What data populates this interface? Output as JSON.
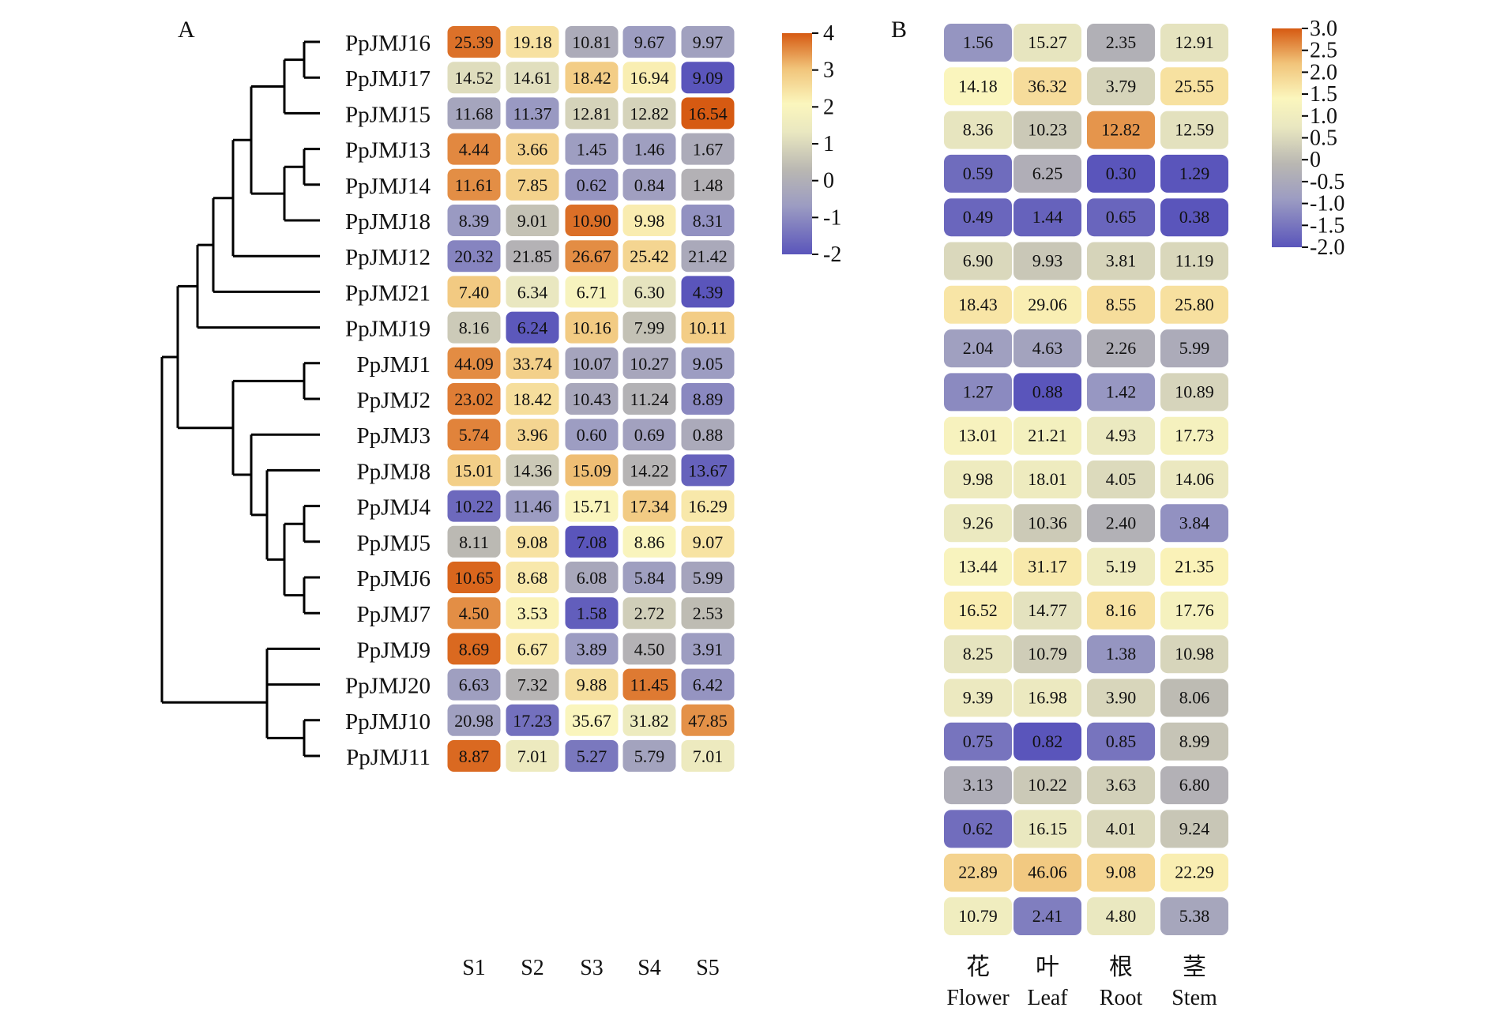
{
  "chart_data": [
    {
      "type": "heatmap",
      "panel": "A",
      "rows": [
        "PpJMJ16",
        "PpJMJ17",
        "PpJMJ15",
        "PpJMJ13",
        "PpJMJ14",
        "PpJMJ18",
        "PpJMJ12",
        "PpJMJ21",
        "PpJMJ19",
        "PpJMJ1",
        "PpJMJ2",
        "PpJMJ3",
        "PpJMJ8",
        "PpJMJ4",
        "PpJMJ5",
        "PpJMJ6",
        "PpJMJ7",
        "PpJMJ9",
        "PpJMJ20",
        "PpJMJ10",
        "PpJMJ11"
      ],
      "columns": [
        "S1",
        "S2",
        "S3",
        "S4",
        "S5"
      ],
      "values": [
        [
          "25.39",
          "19.18",
          "10.81",
          "9.67",
          "9.97"
        ],
        [
          "14.52",
          "14.61",
          "18.42",
          "16.94",
          "9.09"
        ],
        [
          "11.68",
          "11.37",
          "12.81",
          "12.82",
          "16.54"
        ],
        [
          "4.44",
          "3.66",
          "1.45",
          "1.46",
          "1.67"
        ],
        [
          "11.61",
          "7.85",
          "0.62",
          "0.84",
          "1.48"
        ],
        [
          "8.39",
          "9.01",
          "10.90",
          "9.98",
          "8.31"
        ],
        [
          "20.32",
          "21.85",
          "26.67",
          "25.42",
          "21.42"
        ],
        [
          "7.40",
          "6.34",
          "6.71",
          "6.30",
          "4.39"
        ],
        [
          "8.16",
          "6.24",
          "10.16",
          "7.99",
          "10.11"
        ],
        [
          "44.09",
          "33.74",
          "10.07",
          "10.27",
          "9.05"
        ],
        [
          "23.02",
          "18.42",
          "10.43",
          "11.24",
          "8.89"
        ],
        [
          "5.74",
          "3.96",
          "0.60",
          "0.69",
          "0.88"
        ],
        [
          "15.01",
          "14.36",
          "15.09",
          "14.22",
          "13.67"
        ],
        [
          "10.22",
          "11.46",
          "15.71",
          "17.34",
          "16.29"
        ],
        [
          "8.11",
          "9.08",
          "7.08",
          "8.86",
          "9.07"
        ],
        [
          "10.65",
          "8.68",
          "6.08",
          "5.84",
          "5.99"
        ],
        [
          "4.50",
          "3.53",
          "1.58",
          "2.72",
          "2.53"
        ],
        [
          "8.69",
          "6.67",
          "3.89",
          "4.50",
          "3.91"
        ],
        [
          "6.63",
          "7.32",
          "9.88",
          "11.45",
          "6.42"
        ],
        [
          "20.98",
          "17.23",
          "35.67",
          "31.82",
          "47.85"
        ],
        [
          "8.87",
          "7.01",
          "5.27",
          "5.79",
          "7.01"
        ]
      ],
      "colorbar": {
        "min": -2,
        "max": 4,
        "ticks": [
          "4",
          "3",
          "2",
          "1",
          "0",
          "-1",
          "-2"
        ]
      },
      "dendrogram": {
        "tree": [
          [
            [
              [
                [
                  [
                    "PpJMJ16",
                    "PpJMJ17"
                  ],
                  "PpJMJ15"
                ],
                [
                  [
                    "PpJMJ13",
                    "PpJMJ14"
                  ],
                  "PpJMJ18"
                ]
              ],
              "PpJMJ12"
            ],
            "PpJMJ21"
          ],
          "PpJMJ19"
        ],
        "tree2": [
          [
            [
              "PpJMJ1",
              "PpJMJ2"
            ],
            [
              "PpJMJ3",
              [
                "PpJMJ8",
                [
                  [
                    "PpJMJ4",
                    "PpJMJ5"
                  ],
                  [
                    "PpJMJ6",
                    "PpJMJ7"
                  ]
                ]
              ]
            ]
          ],
          [
            [
              "PpJMJ9",
              "PpJMJ20"
            ],
            [
              "PpJMJ10",
              "PpJMJ11"
            ]
          ]
        ]
      }
    },
    {
      "type": "heatmap",
      "panel": "B",
      "columns_zh": [
        "花",
        "叶",
        "根",
        "茎"
      ],
      "columns": [
        "Flower",
        "Leaf",
        "Root",
        "Stem"
      ],
      "values": [
        [
          "1.56",
          "15.27",
          "2.35",
          "12.91"
        ],
        [
          "14.18",
          "36.32",
          "3.79",
          "25.55"
        ],
        [
          "8.36",
          "10.23",
          "12.82",
          "12.59"
        ],
        [
          "0.59",
          "6.25",
          "0.30",
          "1.29"
        ],
        [
          "0.49",
          "1.44",
          "0.65",
          "0.38"
        ],
        [
          "6.90",
          "9.93",
          "3.81",
          "11.19"
        ],
        [
          "18.43",
          "29.06",
          "8.55",
          "25.80"
        ],
        [
          "2.04",
          "4.63",
          "2.26",
          "5.99"
        ],
        [
          "1.27",
          "0.88",
          "1.42",
          "10.89"
        ],
        [
          "13.01",
          "21.21",
          "4.93",
          "17.73"
        ],
        [
          "9.98",
          "18.01",
          "4.05",
          "14.06"
        ],
        [
          "9.26",
          "10.36",
          "2.40",
          "3.84"
        ],
        [
          "13.44",
          "31.17",
          "5.19",
          "21.35"
        ],
        [
          "16.52",
          "14.77",
          "8.16",
          "17.76"
        ],
        [
          "8.25",
          "10.79",
          "1.38",
          "10.98"
        ],
        [
          "9.39",
          "16.98",
          "3.90",
          "8.06"
        ],
        [
          "0.75",
          "0.82",
          "0.85",
          "8.99"
        ],
        [
          "3.13",
          "10.22",
          "3.63",
          "6.80"
        ],
        [
          "0.62",
          "16.15",
          "4.01",
          "9.24"
        ],
        [
          "22.89",
          "46.06",
          "9.08",
          "22.29"
        ],
        [
          "10.79",
          "2.41",
          "4.80",
          "5.38"
        ]
      ],
      "colorbar": {
        "min": -2.0,
        "max": 3.0,
        "ticks": [
          "3.0",
          "2.5",
          "2.0",
          "1.5",
          "1.0",
          "0.5",
          "0",
          "-0.5",
          "-1.0",
          "-1.5",
          "-2.0"
        ]
      }
    }
  ],
  "colors": {
    "low": "#5a55bb",
    "mid_low": "#9c9cc2",
    "neutral": "#b9b7b2",
    "mid": "#e9e7c0",
    "light": "#fbf6bd",
    "mid_high": "#f1c47a",
    "high": "#d65a12"
  }
}
